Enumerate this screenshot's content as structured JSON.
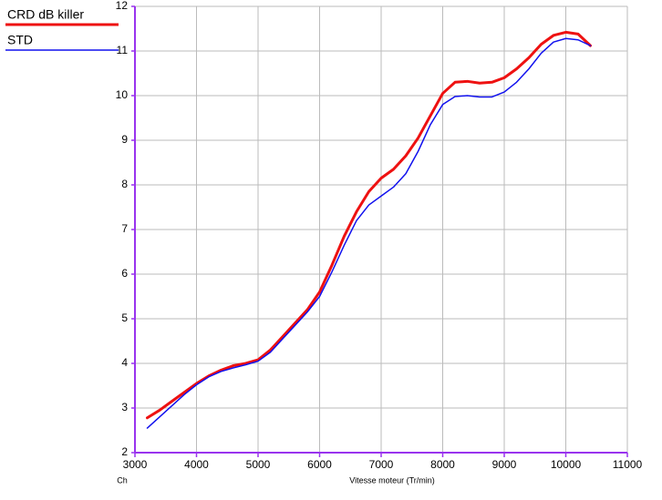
{
  "chart_data": {
    "type": "line",
    "xlabel": "Vitesse moteur (Tr/min)",
    "ylabel": "Ch",
    "x": [
      3200,
      3400,
      3600,
      3800,
      4000,
      4200,
      4400,
      4600,
      4800,
      5000,
      5200,
      5400,
      5600,
      5800,
      6000,
      6200,
      6400,
      6600,
      6800,
      7000,
      7200,
      7400,
      7600,
      7800,
      8000,
      8200,
      8400,
      8600,
      8800,
      9000,
      9200,
      9400,
      9600,
      9800,
      10000,
      10200,
      10400
    ],
    "series": [
      {
        "name": "CRD dB killer",
        "color": "#ee1111",
        "width": 3,
        "values": [
          2.78,
          2.95,
          3.15,
          3.35,
          3.55,
          3.72,
          3.85,
          3.95,
          4.0,
          4.08,
          4.3,
          4.6,
          4.9,
          5.2,
          5.6,
          6.2,
          6.85,
          7.4,
          7.85,
          8.15,
          8.35,
          8.65,
          9.05,
          9.55,
          10.05,
          10.3,
          10.32,
          10.28,
          10.3,
          10.4,
          10.6,
          10.85,
          11.15,
          11.35,
          11.42,
          11.38,
          11.12
        ]
      },
      {
        "name": "STD",
        "color": "#1111ee",
        "width": 1.5,
        "values": [
          2.55,
          2.8,
          3.05,
          3.3,
          3.52,
          3.7,
          3.82,
          3.9,
          3.97,
          4.05,
          4.25,
          4.55,
          4.85,
          5.15,
          5.5,
          6.05,
          6.65,
          7.2,
          7.55,
          7.75,
          7.95,
          8.25,
          8.75,
          9.35,
          9.8,
          9.98,
          10.0,
          9.97,
          9.97,
          10.08,
          10.3,
          10.6,
          10.95,
          11.2,
          11.28,
          11.25,
          11.12
        ]
      }
    ],
    "xlim": [
      3000,
      11000
    ],
    "xticks": [
      3000,
      4000,
      5000,
      6000,
      7000,
      8000,
      9000,
      10000,
      11000
    ],
    "ylim": [
      2,
      12
    ],
    "yticks": [
      2,
      3,
      4,
      5,
      6,
      7,
      8,
      9,
      10,
      11,
      12
    ],
    "grid": true,
    "axis_color": "#9933ee",
    "grid_color": "#bbbbbb"
  }
}
